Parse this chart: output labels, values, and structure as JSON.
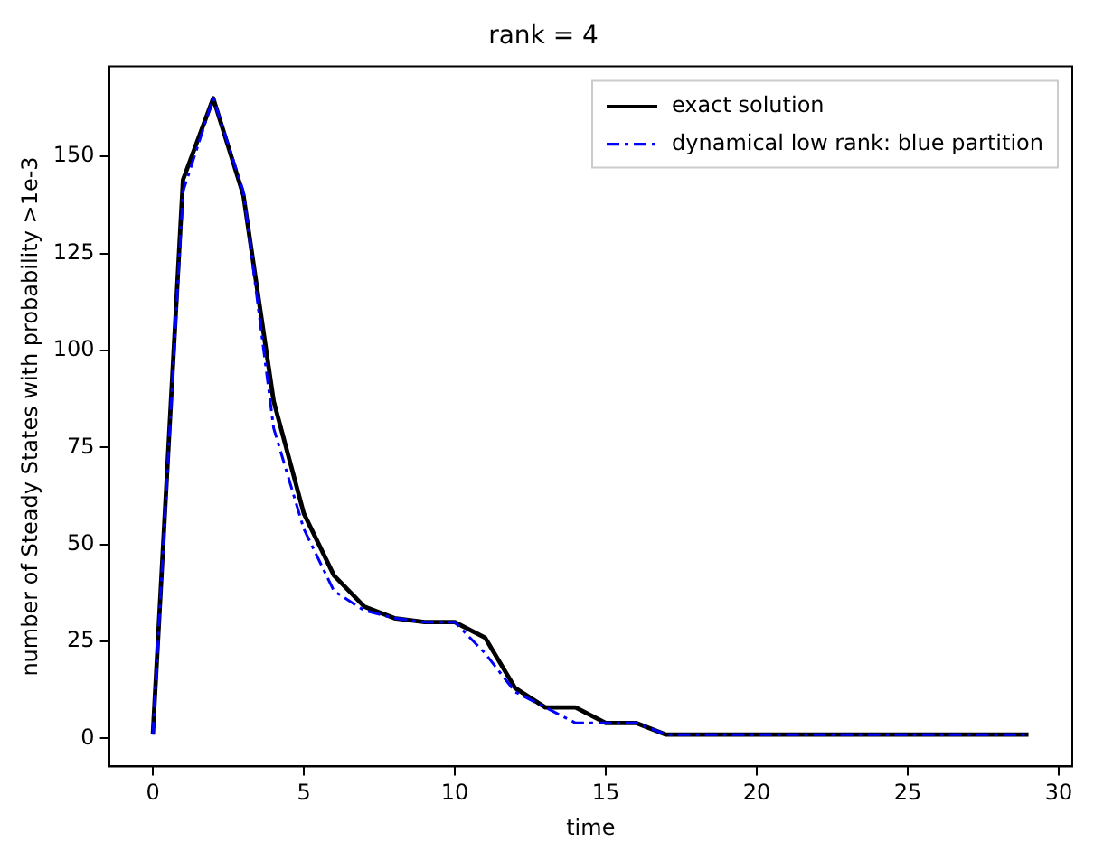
{
  "chart_data": {
    "type": "line",
    "title": "rank = 4",
    "xlabel": "time",
    "ylabel": "number of Steady States with probability >1e-3",
    "x": [
      0,
      1,
      2,
      3,
      4,
      5,
      6,
      7,
      8,
      9,
      10,
      11,
      12,
      13,
      14,
      15,
      16,
      17,
      18,
      19,
      20,
      21,
      22,
      23,
      24,
      25,
      26,
      27,
      28,
      29
    ],
    "series": [
      {
        "name": "exact solution",
        "color": "#000000",
        "line_style": "solid",
        "values": [
          1,
          144,
          165,
          140,
          87,
          58,
          42,
          34,
          31,
          30,
          30,
          26,
          13,
          8,
          8,
          4,
          4,
          1,
          1,
          1,
          1,
          1,
          1,
          1,
          1,
          1,
          1,
          1,
          1,
          1
        ]
      },
      {
        "name": "dynamical low rank: blue partition",
        "color": "#0000ff",
        "line_style": "dashdot",
        "values": [
          1,
          141,
          165,
          141,
          80,
          54,
          38,
          33,
          31,
          30,
          30,
          22,
          12,
          8,
          4,
          4,
          4,
          1,
          1,
          1,
          1,
          1,
          1,
          1,
          1,
          1,
          1,
          1,
          1,
          1
        ]
      }
    ],
    "xlim": [
      -1.45,
      30.45
    ],
    "ylim": [
      -7.2,
      173.2
    ],
    "xticks": [
      0,
      5,
      10,
      15,
      20,
      25,
      30
    ],
    "yticks": [
      0,
      25,
      50,
      75,
      100,
      125,
      150
    ],
    "grid": false,
    "legend": "top right",
    "marker": "none"
  }
}
